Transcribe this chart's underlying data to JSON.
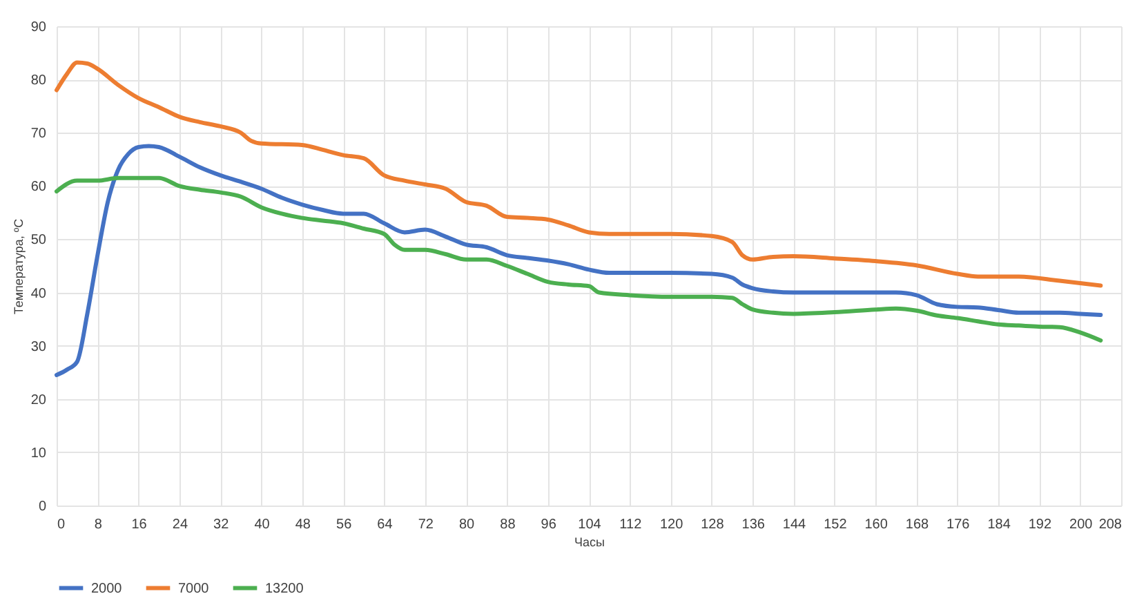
{
  "chart_data": {
    "type": "line",
    "xlabel": "Часы",
    "ylabel": "Температура, ºС",
    "xlim": [
      0,
      208
    ],
    "xticks": [
      0,
      8,
      16,
      24,
      32,
      40,
      48,
      56,
      64,
      72,
      80,
      88,
      96,
      104,
      112,
      120,
      128,
      136,
      144,
      152,
      160,
      168,
      176,
      184,
      192,
      200,
      208
    ],
    "ylim": [
      0,
      90
    ],
    "yticks": [
      0,
      10,
      20,
      30,
      40,
      50,
      60,
      70,
      80,
      90
    ],
    "grid": true,
    "legend": "bottom",
    "series": [
      {
        "name": "2000",
        "color": "#4472c4",
        "x": [
          0,
          2,
          4,
          6,
          8,
          10,
          12,
          14,
          16,
          18,
          20,
          24,
          28,
          32,
          36,
          40,
          44,
          48,
          52,
          56,
          60,
          64,
          68,
          72,
          76,
          80,
          84,
          88,
          92,
          96,
          100,
          104,
          108,
          112,
          120,
          128,
          132,
          134,
          136,
          140,
          144,
          152,
          160,
          164,
          168,
          172,
          176,
          180,
          184,
          188,
          192,
          196,
          200,
          204
        ],
        "values": [
          24.5,
          25.5,
          27,
          36,
          47,
          57,
          63,
          66,
          67.3,
          67.5,
          67.3,
          65.5,
          63.5,
          62,
          60.8,
          59.5,
          57.8,
          56.5,
          55.5,
          54.8,
          54.8,
          53,
          51.3,
          51.8,
          50.5,
          49,
          48.5,
          47,
          46.5,
          46,
          45.3,
          44.3,
          43.7,
          43.7,
          43.7,
          43.5,
          42.8,
          41.5,
          40.8,
          40.2,
          40,
          40,
          40,
          40,
          39.5,
          37.8,
          37.3,
          37.2,
          36.7,
          36.2,
          36.2,
          36.2,
          36,
          35.8
        ]
      },
      {
        "name": "7000",
        "color": "#ed7d31",
        "x": [
          0,
          2,
          4,
          6,
          8,
          12,
          16,
          20,
          24,
          28,
          32,
          36,
          38,
          40,
          48,
          52,
          56,
          60,
          64,
          68,
          72,
          76,
          80,
          84,
          88,
          92,
          96,
          100,
          104,
          108,
          112,
          120,
          128,
          132,
          134,
          136,
          140,
          144,
          152,
          160,
          168,
          176,
          180,
          188,
          196,
          204
        ],
        "values": [
          78,
          81,
          83.2,
          83,
          82,
          79,
          76.5,
          74.8,
          73,
          72,
          71.2,
          70,
          68.5,
          68,
          67.7,
          66.8,
          65.8,
          65.2,
          62,
          61,
          60.3,
          59.5,
          57,
          56.3,
          54.2,
          54,
          53.7,
          52.6,
          51.3,
          51,
          51,
          51,
          50.6,
          49.5,
          47,
          46.2,
          46.7,
          46.8,
          46.4,
          45.9,
          45.1,
          43.5,
          43,
          43,
          42.2,
          41.3
        ]
      },
      {
        "name": "13200",
        "color": "#4caf50",
        "x": [
          0,
          4,
          8,
          12,
          16,
          20,
          24,
          28,
          32,
          36,
          40,
          44,
          48,
          52,
          56,
          60,
          64,
          66,
          68,
          72,
          76,
          80,
          84,
          88,
          92,
          96,
          100,
          104,
          106,
          112,
          120,
          128,
          132,
          134,
          136,
          140,
          144,
          152,
          160,
          164,
          168,
          172,
          176,
          180,
          184,
          188,
          192,
          196,
          200,
          204
        ],
        "values": [
          59,
          61,
          61,
          61.5,
          61.5,
          61.5,
          60,
          59.3,
          58.8,
          58,
          56,
          54.8,
          54,
          53.5,
          53,
          52,
          51,
          49,
          48,
          48,
          47.2,
          46.2,
          46.2,
          45,
          43.5,
          42,
          41.5,
          41.2,
          40,
          39.5,
          39.2,
          39.2,
          39,
          37.8,
          36.8,
          36.2,
          36,
          36.3,
          36.8,
          37,
          36.6,
          35.7,
          35.2,
          34.6,
          34,
          33.8,
          33.6,
          33.5,
          32.5,
          31
        ]
      }
    ]
  }
}
